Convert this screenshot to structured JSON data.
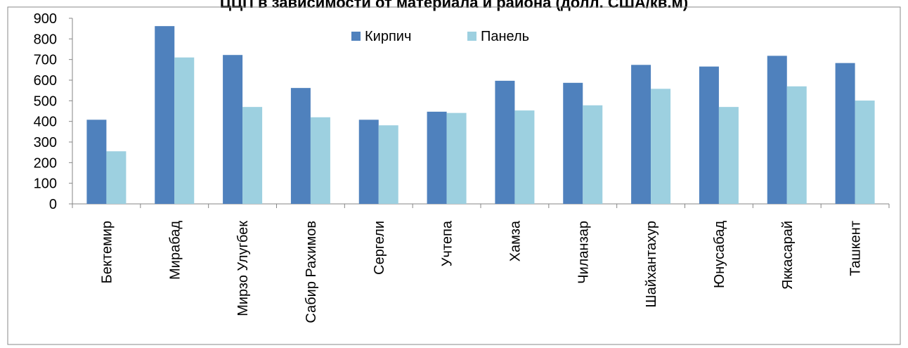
{
  "chart_data": {
    "type": "bar",
    "title": "ЦЦП в зависимости от материала и района (долл. США/кв.м)",
    "categories": [
      "Бектемир",
      "Мирабад",
      "Мирзо Улугбек",
      "Сабир Рахимов",
      "Сергели",
      "Учтепа",
      "Хамза",
      "Чиланзар",
      "Шайхантахур",
      "Юнусабад",
      "Яккасарай",
      "Ташкент"
    ],
    "series": [
      {
        "name": "Кирпич",
        "color": "#4f81bd",
        "values": [
          408,
          862,
          722,
          562,
          408,
          447,
          597,
          587,
          674,
          666,
          718,
          683
        ]
      },
      {
        "name": "Панель",
        "color": "#9dd0e0",
        "values": [
          255,
          710,
          470,
          420,
          381,
          441,
          453,
          478,
          558,
          470,
          570,
          501
        ]
      }
    ],
    "y_ticks": [
      "0",
      "100",
      "200",
      "300",
      "400",
      "500",
      "600",
      "700",
      "800",
      "900"
    ],
    "ylim": [
      0,
      900
    ],
    "grid": false,
    "legend_position": "top-center"
  }
}
